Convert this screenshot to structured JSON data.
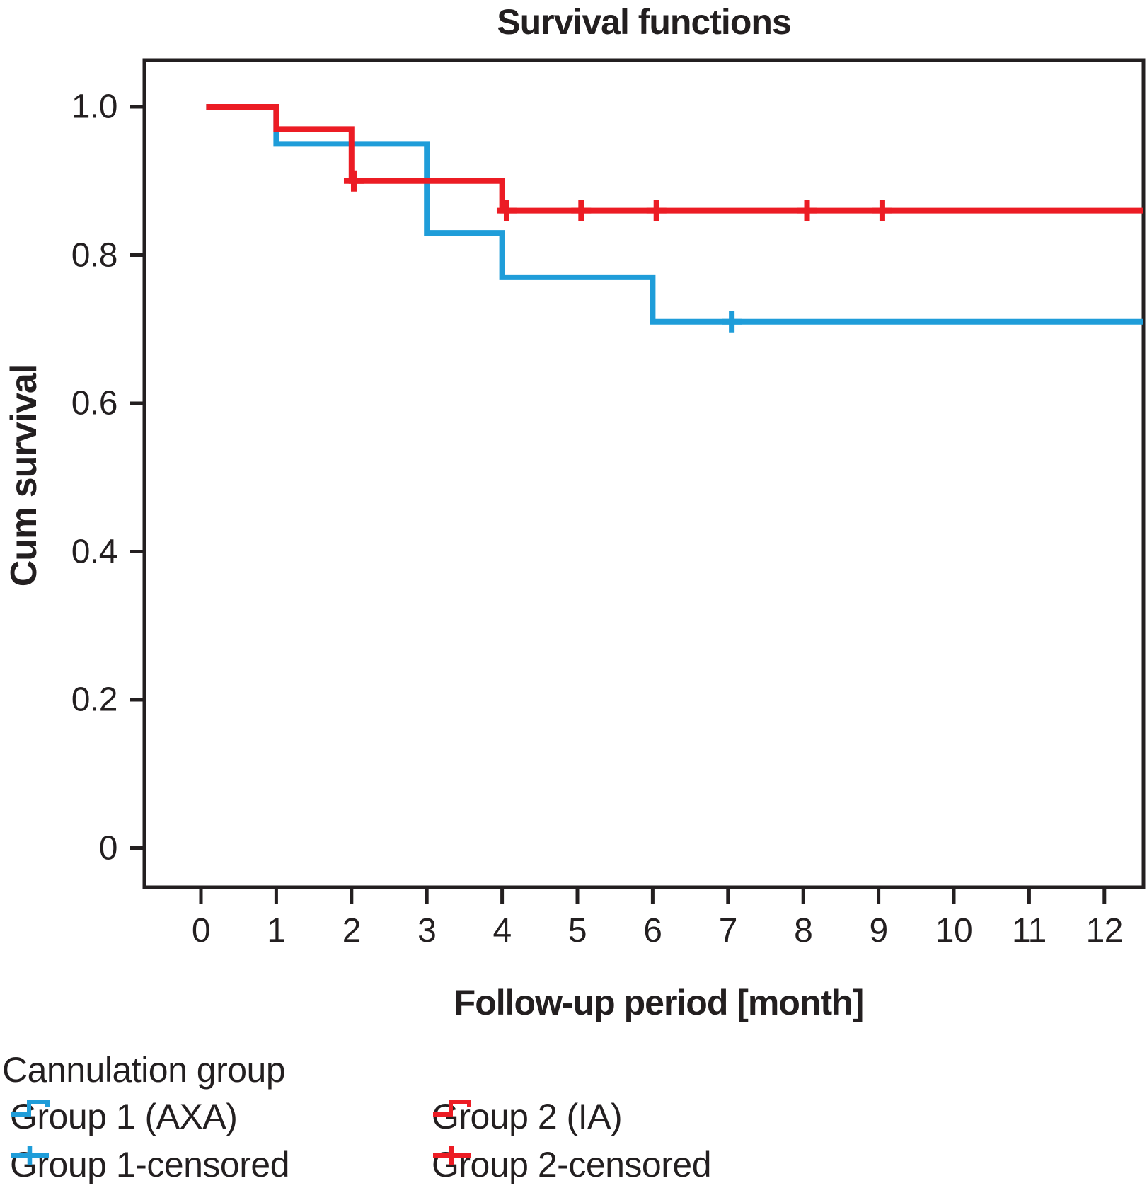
{
  "title": "Survival functions",
  "axes": {
    "x": {
      "label": "Follow-up period [month]",
      "ticks": [
        "0",
        "1",
        "2",
        "3",
        "4",
        "5",
        "6",
        "7",
        "8",
        "9",
        "10",
        "11",
        "12"
      ],
      "tick_values": [
        0,
        1,
        2,
        3,
        4,
        5,
        6,
        7,
        8,
        9,
        10,
        11,
        12
      ]
    },
    "y": {
      "label": "Cum survival",
      "ticks": [
        "1.0",
        "0.8",
        "0.6",
        "0.4",
        "0.2",
        "0"
      ],
      "tick_values": [
        1.0,
        0.8,
        0.6,
        0.4,
        0.2,
        0
      ]
    }
  },
  "legend": {
    "heading": "Cannulation group",
    "items": [
      {
        "label": "Group 1 (AXA)",
        "color": "#1F9DD9",
        "symbol": "step-icon"
      },
      {
        "label": "Group 2 (IA)",
        "color": "#EC1C24",
        "symbol": "step-icon"
      },
      {
        "label": "Group 1-censored",
        "color": "#1F9DD9",
        "symbol": "plus-icon"
      },
      {
        "label": "Group 2-censored",
        "color": "#EC1C24",
        "symbol": "plus-icon"
      }
    ]
  },
  "chart_data": {
    "type": "line",
    "subtype": "kaplan-meier-step",
    "title": "Survival functions",
    "xlabel": "Follow-up period [month]",
    "ylabel": "Cum survival",
    "xlim": [
      -0.75,
      12.52
    ],
    "ylim": [
      -0.05,
      1.06
    ],
    "grid": false,
    "legend_position": "bottom-left",
    "series": [
      {
        "name": "Group 1 (AXA)",
        "color": "#1F9DD9",
        "points": [
          [
            0.07,
            1.0
          ],
          [
            1,
            1.0
          ],
          [
            1,
            0.95
          ],
          [
            3,
            0.95
          ],
          [
            3,
            0.83
          ],
          [
            4,
            0.83
          ],
          [
            4,
            0.77
          ],
          [
            6,
            0.77
          ],
          [
            6,
            0.71
          ],
          [
            12.51,
            0.71
          ]
        ],
        "censored_months": [
          7.05
        ],
        "event_months": [
          1,
          3,
          4,
          6
        ],
        "survival_levels": [
          1.0,
          0.95,
          0.83,
          0.77,
          0.71
        ]
      },
      {
        "name": "Group 2 (IA)",
        "color": "#EC1C24",
        "points": [
          [
            0.07,
            1.0
          ],
          [
            1,
            1.0
          ],
          [
            1,
            0.97
          ],
          [
            2,
            0.97
          ],
          [
            2,
            0.9
          ],
          [
            4,
            0.9
          ],
          [
            4,
            0.86
          ],
          [
            12.51,
            0.86
          ]
        ],
        "censored_months": [
          2.03,
          4.06,
          5.05,
          6.05,
          8.05,
          9.05
        ],
        "event_months": [
          1,
          2,
          4
        ],
        "survival_levels": [
          1.0,
          0.97,
          0.9,
          0.86
        ]
      }
    ]
  },
  "colors": {
    "ink": "#231F20",
    "background": "#FFFFFF",
    "group1_blue": "#1F9DD9",
    "group2_red": "#EC1C24"
  }
}
